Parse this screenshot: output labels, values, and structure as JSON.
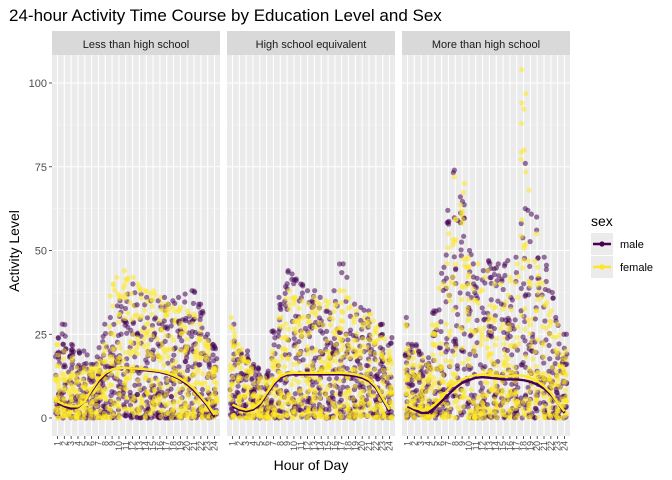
{
  "chart_data": {
    "type": "scatter",
    "title": "24-hour Activity Time Course by Education Level and Sex",
    "xlabel": "Hour of Day",
    "ylabel": "Activity Level",
    "x_ticks": [
      1,
      2,
      3,
      4,
      5,
      6,
      7,
      8,
      9,
      10,
      11,
      12,
      13,
      14,
      15,
      16,
      17,
      18,
      19,
      20,
      21,
      22,
      23,
      24
    ],
    "y_ticks": [
      0,
      25,
      50,
      75,
      100
    ],
    "xlim": [
      1,
      24
    ],
    "ylim": [
      0,
      105
    ],
    "grid": true,
    "legend": {
      "title": "sex",
      "position": "right",
      "entries": [
        {
          "name": "male",
          "color": "#440154"
        },
        {
          "name": "female",
          "color": "#FDE725"
        }
      ]
    },
    "facets": [
      {
        "label": "Less than high school",
        "max_by_hour": {
          "male": [
            24,
            28,
            22,
            20,
            20,
            16,
            21,
            28,
            30,
            35,
            37,
            40,
            37,
            36,
            35,
            35,
            36,
            35,
            36,
            37,
            38,
            34,
            25,
            22
          ],
          "female": [
            22,
            20,
            18,
            15,
            15,
            15,
            17,
            22,
            40,
            42,
            44,
            42,
            40,
            38,
            38,
            36,
            34,
            33,
            33,
            32,
            31,
            28,
            23,
            15
          ]
        },
        "smooth": {
          "male": [
            4.5,
            3.5,
            2.8,
            3.2,
            5,
            8,
            11,
            13,
            14.5,
            15,
            15,
            14.8,
            14.5,
            14.2,
            14,
            13.7,
            13.2,
            12.5,
            11.5,
            10,
            8.2,
            6,
            3.5,
            0.3
          ],
          "female": [
            5,
            4,
            3.5,
            3.5,
            5,
            8.5,
            11.5,
            13.5,
            14.5,
            15,
            15,
            14.8,
            14.7,
            14.5,
            14.3,
            14,
            13.5,
            12.8,
            11.8,
            10.5,
            8.8,
            6.5,
            4,
            1
          ]
        }
      },
      {
        "label": "High school equivalent",
        "max_by_hour": {
          "male": [
            28,
            20,
            20,
            16,
            15,
            14,
            26,
            36,
            44,
            43,
            40,
            38,
            38,
            36,
            32,
            38,
            46,
            42,
            34,
            33,
            32,
            22,
            28,
            24
          ],
          "female": [
            30,
            22,
            18,
            15,
            12,
            12,
            20,
            30,
            38,
            36,
            35,
            34,
            36,
            34,
            35,
            34,
            38,
            36,
            32,
            30,
            31,
            29,
            24,
            20
          ]
        },
        "smooth": {
          "male": [
            3.5,
            2.5,
            2,
            2.5,
            4,
            7,
            10,
            12,
            13,
            13,
            13,
            13,
            13,
            13,
            13,
            13,
            13,
            12.8,
            12.5,
            12,
            11,
            9,
            5.5,
            2
          ],
          "female": [
            4,
            3,
            2.5,
            3,
            4.5,
            7.5,
            10.5,
            12.5,
            13.3,
            13.5,
            13.5,
            13.5,
            13.5,
            13.5,
            13.5,
            13.5,
            13.5,
            13.3,
            13,
            12.5,
            11.5,
            9.5,
            6,
            2.5
          ]
        }
      },
      {
        "label": "More than high school",
        "max_by_hour": {
          "male": [
            30,
            22,
            20,
            18,
            32,
            45,
            62,
            74,
            66,
            50,
            46,
            44,
            47,
            46,
            46,
            47,
            48,
            76,
            62,
            60,
            48,
            38,
            30,
            25
          ],
          "female": [
            28,
            20,
            18,
            16,
            28,
            40,
            55,
            72,
            70,
            48,
            46,
            42,
            44,
            40,
            40,
            42,
            46,
            104,
            68,
            55,
            40,
            32,
            28,
            20
          ]
        },
        "smooth": {
          "male": [
            3.5,
            2.5,
            1.5,
            1.5,
            3,
            5,
            7,
            9,
            10.5,
            11.3,
            12,
            12.2,
            12,
            11.8,
            11.5,
            11.5,
            11.5,
            11.3,
            10.8,
            10,
            8.8,
            7,
            4.5,
            1.5
          ],
          "female": [
            4,
            3,
            2.5,
            2.5,
            4,
            6,
            8.5,
            10.5,
            11.5,
            12.3,
            12.8,
            13,
            12.8,
            12.6,
            12.4,
            12.5,
            12.7,
            12.6,
            12,
            11,
            9.5,
            7.5,
            4.5,
            2
          ]
        }
      }
    ]
  }
}
